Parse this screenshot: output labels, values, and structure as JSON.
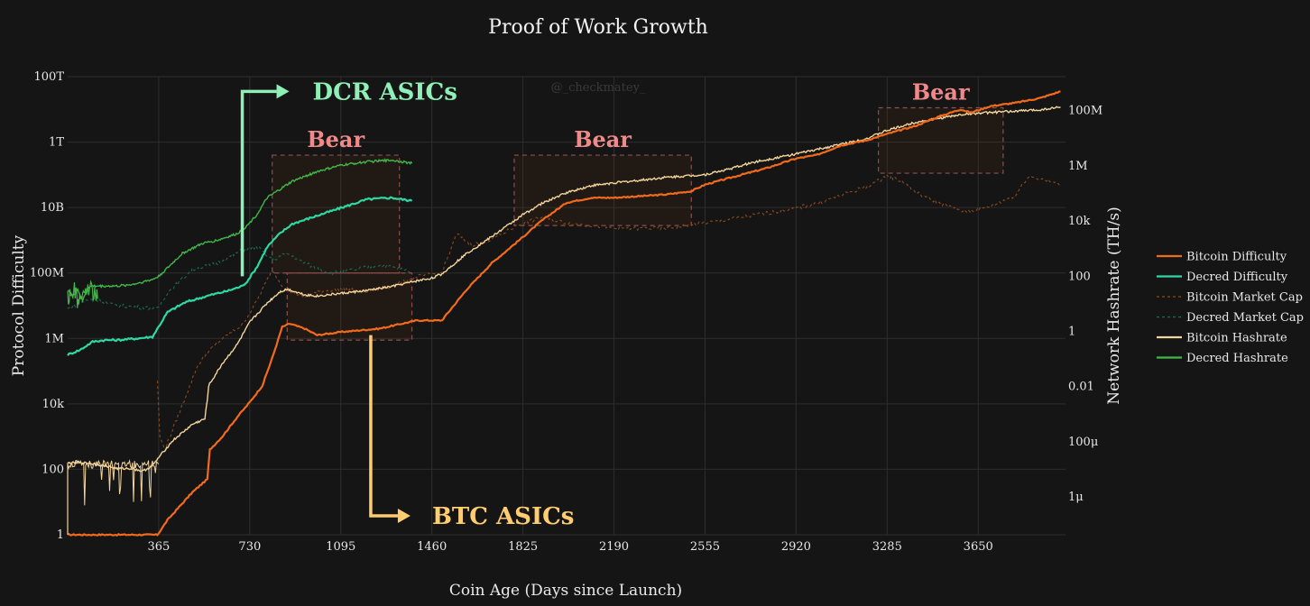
{
  "chart_data": {
    "type": "line",
    "title": "Proof of Work Growth",
    "watermark": "@_checkmatey_",
    "xlabel": "Coin Age (Days since Launch)",
    "ylabel_left": "Protocol Difficulty",
    "ylabel_right": "Network Hashrate (TH/s)",
    "xlim": [
      0,
      4000
    ],
    "x_ticks": [
      365,
      730,
      1095,
      1460,
      1825,
      2190,
      2555,
      2920,
      3285,
      3650
    ],
    "x_tick_labels": [
      "365",
      "730",
      "1095",
      "1460",
      "1825",
      "2190",
      "2555",
      "2920",
      "3285",
      "3650"
    ],
    "y_left_scale": "log",
    "y_left_lim_log10": [
      0,
      14
    ],
    "y_left_ticks_log10": [
      0,
      2,
      4,
      6,
      8,
      10,
      12,
      14
    ],
    "y_left_tick_labels": [
      "1",
      "100",
      "10k",
      "1M",
      "100M",
      "10B",
      "1T",
      "100T"
    ],
    "y_right_scale": "log",
    "y_right_lim_log10": [
      -7.4,
      9.2
    ],
    "y_right_ticks_log10": [
      -6,
      -4,
      -2,
      0,
      2,
      4,
      6,
      8
    ],
    "y_right_tick_labels": [
      "1μ",
      "100μ",
      "0.01",
      "1",
      "100",
      "10k",
      "1M",
      "100M"
    ],
    "grid": true,
    "legend_position": "right",
    "colors": {
      "btc_difficulty": "#f26b1d",
      "dcr_difficulty": "#2ed8a3",
      "btc_marketcap": "#8a4a1e",
      "dcr_marketcap": "#1e6b50",
      "btc_hashrate": "#f3d49b",
      "dcr_hashrate": "#41b649",
      "dcr_annotation": "#8ef0b6",
      "btc_annotation": "#ffcc70",
      "bear": "#f08a8a"
    },
    "series": [
      {
        "name": "Bitcoin Difficulty",
        "axis": "left",
        "style": "solid",
        "color_key": "btc_difficulty",
        "x": [
          0,
          360,
          365,
          400,
          500,
          560,
          570,
          620,
          680,
          730,
          780,
          820,
          860,
          890,
          950,
          1000,
          1100,
          1250,
          1400,
          1500,
          1600,
          1700,
          1825,
          1900,
          2000,
          2100,
          2190,
          2300,
          2400,
          2500,
          2555,
          2700,
          2800,
          2920,
          3000,
          3100,
          3200,
          3285,
          3400,
          3500,
          3580,
          3620,
          3700,
          3800,
          3900,
          3980
        ],
        "y_log10": [
          0,
          0,
          0.05,
          0.45,
          1.3,
          1.7,
          2.6,
          3.0,
          3.6,
          4.05,
          4.55,
          5.4,
          6.35,
          6.45,
          6.3,
          6.1,
          6.2,
          6.3,
          6.55,
          6.55,
          7.5,
          8.3,
          9.1,
          9.6,
          10.15,
          10.3,
          10.3,
          10.35,
          10.4,
          10.5,
          10.7,
          11.0,
          11.2,
          11.5,
          11.6,
          11.9,
          12.05,
          12.25,
          12.5,
          12.8,
          13.0,
          12.9,
          13.1,
          13.2,
          13.35,
          13.55
        ]
      },
      {
        "name": "Decred Difficulty",
        "axis": "left",
        "style": "solid",
        "color_key": "dcr_difficulty",
        "x": [
          0,
          50,
          100,
          150,
          200,
          280,
          340,
          400,
          470,
          560,
          640,
          700,
          720,
          760,
          800,
          850,
          900,
          1000,
          1100,
          1200,
          1300,
          1380
        ],
        "y_log10": [
          5.5,
          5.65,
          5.9,
          5.95,
          5.95,
          6.0,
          6.05,
          6.8,
          7.1,
          7.3,
          7.45,
          7.6,
          7.75,
          8.2,
          8.8,
          9.2,
          9.5,
          9.75,
          10.0,
          10.25,
          10.3,
          10.2
        ]
      },
      {
        "name": "Bitcoin Market Cap",
        "axis": "right",
        "style": "dashed",
        "color_key": "btc_marketcap",
        "x": [
          360,
          365,
          370,
          390,
          520,
          560,
          620,
          700,
          760,
          820,
          870,
          950,
          1000,
          1100,
          1200,
          1300,
          1400,
          1500,
          1560,
          1620,
          1700,
          1800,
          1900,
          2000,
          2100,
          2200,
          2400,
          2555,
          2700,
          2900,
          3000,
          3100,
          3200,
          3285,
          3350,
          3400,
          3500,
          3600,
          3700,
          3800,
          3850,
          3900,
          3980
        ],
        "y_log10": [
          -1.8,
          -2.9,
          -3.9,
          -4.3,
          -1.3,
          -0.8,
          -0.3,
          0.2,
          1.1,
          2.2,
          1.5,
          1.2,
          1.4,
          1.5,
          1.4,
          1.6,
          1.95,
          2.1,
          3.5,
          3.1,
          3.3,
          3.8,
          4.1,
          3.9,
          3.8,
          3.7,
          3.7,
          3.9,
          4.1,
          4.4,
          4.6,
          4.9,
          5.2,
          5.6,
          5.4,
          5.0,
          4.6,
          4.3,
          4.5,
          4.9,
          5.6,
          5.5,
          5.3
        ]
      },
      {
        "name": "Decred Market Cap",
        "axis": "left",
        "style": "dashed",
        "color_key": "dcr_marketcap",
        "x": [
          0,
          50,
          100,
          200,
          300,
          360,
          400,
          500,
          600,
          700,
          760,
          820,
          880,
          950,
          1050,
          1150,
          1250,
          1380
        ],
        "y_log10": [
          6.9,
          7.1,
          7.2,
          7.0,
          6.95,
          6.9,
          7.4,
          8.1,
          8.3,
          8.7,
          8.8,
          8.4,
          8.6,
          8.3,
          8.0,
          8.1,
          8.25,
          8.05
        ]
      },
      {
        "name": "Bitcoin Hashrate",
        "axis": "right",
        "style": "solid",
        "color_key": "btc_hashrate",
        "x": [
          0,
          80,
          150,
          200,
          260,
          300,
          340,
          365,
          420,
          500,
          550,
          560,
          565,
          620,
          680,
          730,
          800,
          850,
          880,
          950,
          1000,
          1100,
          1200,
          1300,
          1400,
          1460,
          1500,
          1600,
          1700,
          1825,
          1900,
          2000,
          2100,
          2190,
          2300,
          2400,
          2555,
          2650,
          2750,
          2920,
          3000,
          3100,
          3200,
          3285,
          3400,
          3500,
          3600,
          3700,
          3800,
          3900,
          3980
        ],
        "y_log10": [
          -4.8,
          -4.8,
          -4.9,
          -5.0,
          -5.0,
          -5.1,
          -4.9,
          -4.6,
          -4.0,
          -3.4,
          -3.2,
          -2.5,
          -2.0,
          -1.2,
          -0.5,
          0.3,
          1.0,
          1.4,
          1.5,
          1.3,
          1.25,
          1.35,
          1.45,
          1.6,
          1.8,
          1.9,
          2.05,
          2.8,
          3.4,
          4.2,
          4.6,
          5.0,
          5.25,
          5.35,
          5.45,
          5.55,
          5.65,
          5.85,
          6.1,
          6.4,
          6.55,
          6.75,
          6.95,
          7.25,
          7.55,
          7.7,
          7.85,
          7.9,
          7.95,
          8.0,
          8.1
        ]
      },
      {
        "name": "Decred Hashrate",
        "axis": "left",
        "style": "solid",
        "color_key": "dcr_hashrate",
        "x": [
          0,
          20,
          40,
          60,
          80,
          100,
          150,
          200,
          260,
          340,
          365,
          400,
          460,
          540,
          600,
          640,
          680,
          720,
          760,
          800,
          850,
          900,
          1000,
          1100,
          1200,
          1300,
          1380
        ],
        "y_log10": [
          7.5,
          7.3,
          7.5,
          7.15,
          7.55,
          7.6,
          7.6,
          7.6,
          7.65,
          7.8,
          7.9,
          8.15,
          8.6,
          8.9,
          9.0,
          9.1,
          9.2,
          9.45,
          9.8,
          10.3,
          10.55,
          10.8,
          11.1,
          11.3,
          11.4,
          11.45,
          11.35
        ]
      }
    ],
    "bear_regions": [
      {
        "label": "Bear",
        "x": [
          820,
          1330
        ],
        "y_log10": [
          8,
          11.6
        ]
      },
      {
        "label": "Bear",
        "ref": "box",
        "x": [
          880,
          1380
        ],
        "y_log10": [
          5.95,
          8.0
        ]
      },
      {
        "label": "Bear",
        "x": [
          1790,
          2500
        ],
        "y_log10": [
          9.45,
          11.6
        ]
      },
      {
        "label": "Bear",
        "x": [
          3250,
          3750
        ],
        "y_log10": [
          11.05,
          13.05
        ]
      }
    ],
    "annotations": [
      {
        "text": "DCR ASICs",
        "color_key": "dcr_annotation"
      },
      {
        "text": "BTC ASICs",
        "color_key": "btc_annotation"
      }
    ]
  }
}
